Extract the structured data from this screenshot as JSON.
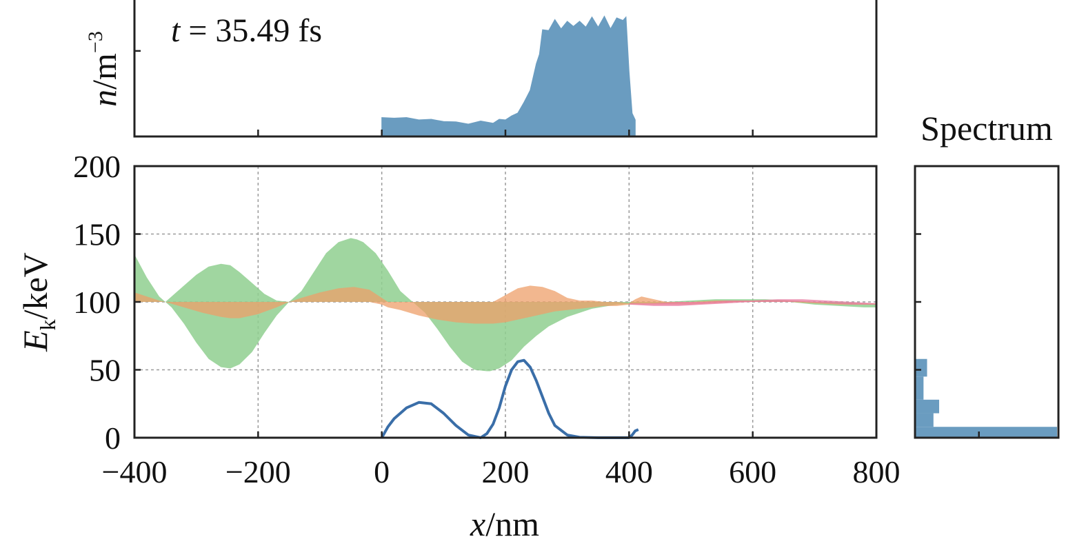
{
  "chart_data": [
    {
      "panel": "density",
      "type": "area",
      "ylabel": {
        "var": "n",
        "unit": "m",
        "exp": "−3"
      },
      "annotation": {
        "var": "t",
        "text": " = 35.49 fs"
      },
      "xlim": [
        -400,
        800
      ],
      "x_ticks": [
        -200,
        0,
        200,
        400,
        600
      ],
      "y_ticks": [
        1.0
      ],
      "ylim": [
        0,
        1.6
      ],
      "color": "#6a9cc0",
      "series": [
        {
          "x": [
            0,
            20,
            40,
            60,
            80,
            100,
            120,
            140,
            160,
            180,
            190,
            200,
            210,
            220,
            230,
            240,
            250,
            255,
            260,
            270,
            280,
            290,
            300,
            310,
            320,
            330,
            340,
            350,
            360,
            370,
            380,
            390,
            395,
            400,
            405,
            410
          ],
          "y": [
            0.2,
            0.22,
            0.2,
            0.2,
            0.18,
            0.18,
            0.15,
            0.15,
            0.16,
            0.16,
            0.18,
            0.2,
            0.22,
            0.28,
            0.38,
            0.55,
            0.8,
            1.0,
            1.2,
            1.28,
            1.32,
            1.3,
            1.3,
            1.33,
            1.3,
            1.32,
            1.35,
            1.32,
            1.36,
            1.3,
            1.34,
            1.4,
            1.35,
            0.8,
            0.25,
            0.2
          ]
        }
      ]
    },
    {
      "panel": "energy",
      "type": "area",
      "xlabel": {
        "var": "x",
        "unit": "nm"
      },
      "ylabel": {
        "var": "E",
        "sub": "k",
        "unit": "keV"
      },
      "xlim": [
        -400,
        800
      ],
      "ylim": [
        0,
        200
      ],
      "x_ticks": [
        -400,
        -200,
        0,
        200,
        400,
        600,
        800
      ],
      "y_ticks": [
        0,
        50,
        100,
        150,
        200
      ],
      "grid": true,
      "series": [
        {
          "color": "#8fcf8f",
          "x": [
            -400,
            -380,
            -360,
            -350,
            -340,
            -320,
            -300,
            -280,
            -260,
            -245,
            -230,
            -210,
            -190,
            -170,
            -150,
            -130,
            -110,
            -90,
            -70,
            -50,
            -40,
            -30,
            -10,
            10,
            30,
            50,
            70,
            90,
            110,
            130,
            150,
            170,
            175,
            190,
            210,
            230,
            250,
            270,
            300,
            340,
            380,
            420,
            460,
            500,
            540,
            580,
            620,
            660,
            700,
            740,
            780,
            800
          ],
          "upper": [
            135,
            118,
            104,
            100,
            104,
            112,
            120,
            126,
            128,
            127,
            122,
            114,
            106,
            101,
            100,
            108,
            122,
            136,
            144,
            147,
            146,
            144,
            136,
            123,
            108,
            100,
            100,
            100,
            100,
            100,
            100,
            100,
            100,
            100,
            100,
            100,
            100,
            100,
            100,
            100,
            100,
            100,
            100,
            101,
            102,
            102,
            102,
            101,
            100,
            100,
            99,
            99
          ],
          "lower": [
            100,
            100,
            100,
            100,
            96,
            84,
            70,
            58,
            52,
            51,
            54,
            63,
            77,
            90,
            100,
            100,
            100,
            100,
            100,
            100,
            100,
            100,
            100,
            100,
            100,
            100,
            92,
            80,
            67,
            56,
            50,
            49,
            49,
            51,
            57,
            67,
            75,
            82,
            89,
            95,
            98,
            99,
            99,
            100,
            100,
            100,
            100,
            100,
            98,
            97,
            96,
            96
          ]
        },
        {
          "color": "#ee9f6a",
          "x": [
            -400,
            -380,
            -360,
            -350,
            -320,
            -290,
            -260,
            -245,
            -230,
            -200,
            -170,
            -150,
            -130,
            -100,
            -70,
            -45,
            -20,
            0,
            10,
            30,
            60,
            90,
            120,
            150,
            180,
            200,
            220,
            240,
            260,
            280,
            300,
            320,
            340,
            360,
            380,
            400,
            410,
            420,
            440,
            460,
            500,
            540,
            580,
            620,
            660,
            700,
            740,
            780,
            800
          ],
          "upper": [
            107,
            104,
            101,
            100,
            100,
            100,
            100,
            100,
            100,
            100,
            100,
            100,
            103,
            107,
            110,
            111,
            109,
            103,
            100,
            100,
            100,
            100,
            100,
            100,
            100,
            105,
            110,
            112,
            111,
            108,
            103,
            101,
            101,
            100,
            100,
            99,
            102,
            104,
            102,
            100,
            100,
            101,
            101,
            101,
            101,
            100,
            99,
            99,
            99
          ],
          "lower": [
            100,
            100,
            100,
            100,
            96,
            92,
            89,
            88,
            88,
            91,
            96,
            100,
            100,
            100,
            100,
            100,
            100,
            98,
            96,
            94,
            90,
            87,
            85,
            84,
            84,
            85,
            87,
            89,
            91,
            93,
            94,
            95,
            96,
            97,
            97,
            98,
            98,
            98,
            98,
            98,
            98,
            99,
            100,
            100,
            100,
            99,
            98,
            98,
            98
          ]
        },
        {
          "color": "#e87aa0",
          "x": [
            400,
            440,
            480,
            520,
            560,
            600,
            640,
            680,
            720,
            760,
            800
          ],
          "upper": [
            99,
            99,
            100,
            100,
            101,
            101,
            102,
            102,
            101,
            100,
            99
          ],
          "lower": [
            98,
            97,
            97,
            98,
            99,
            100,
            100,
            100,
            99,
            98,
            98
          ]
        }
      ],
      "line": {
        "color": "#3a6ea8",
        "x": [
          0,
          10,
          20,
          40,
          60,
          80,
          100,
          120,
          140,
          160,
          170,
          180,
          190,
          200,
          210,
          220,
          230,
          240,
          250,
          260,
          270,
          280,
          300,
          320,
          350,
          380,
          400,
          405,
          410,
          415
        ],
        "y": [
          0,
          8,
          14,
          22,
          26,
          25,
          18,
          9,
          2,
          0,
          3,
          10,
          22,
          38,
          50,
          56,
          57,
          52,
          42,
          30,
          18,
          9,
          2,
          0.3,
          0,
          0,
          0,
          2,
          5,
          6
        ]
      }
    },
    {
      "panel": "spectrum",
      "type": "bar",
      "title": "Spectrum",
      "ylim": [
        0,
        200
      ],
      "y_ticks": [
        0,
        50,
        100,
        150
      ],
      "x_ticks": [
        0.45
      ],
      "color": "#6a9cc0",
      "bins": [
        {
          "y0": 45,
          "y1": 58,
          "value": 0.085
        },
        {
          "y0": 28,
          "y1": 45,
          "value": 0.06
        },
        {
          "y0": 18,
          "y1": 28,
          "value": 0.17
        },
        {
          "y0": 8,
          "y1": 18,
          "value": 0.13
        },
        {
          "y0": 0,
          "y1": 8,
          "value": 1.0
        }
      ]
    }
  ]
}
